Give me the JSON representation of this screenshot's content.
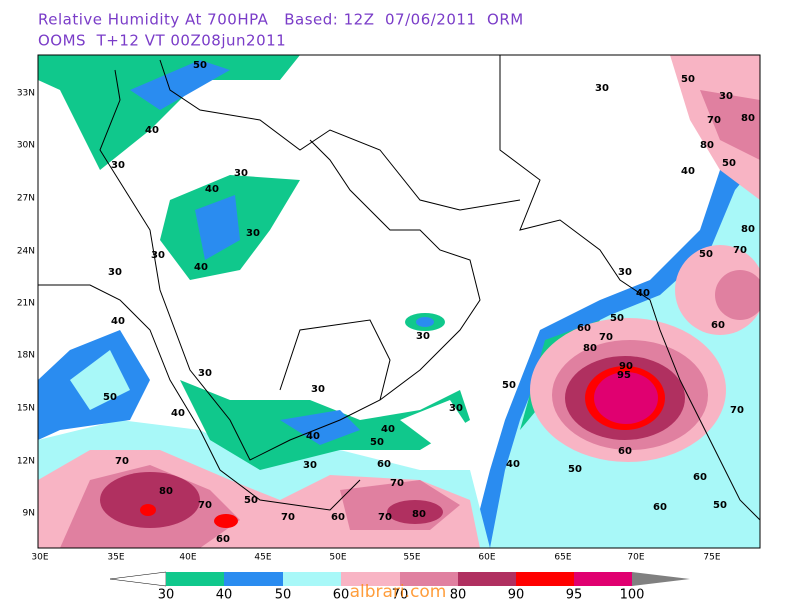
{
  "header": {
    "line1": "Relative Humidity At 700HPA   Based: 12Z  07/06/2011  ORM",
    "line2": "OOMS  T+12 VT 00Z08jun2011"
  },
  "map": {
    "lat_labels": [
      "33N",
      "30N",
      "27N",
      "24N",
      "21N",
      "18N",
      "15N",
      "12N",
      "9N"
    ],
    "lon_labels": [
      "30E",
      "35E",
      "40E",
      "45E",
      "50E",
      "55E",
      "60E",
      "65E",
      "70E",
      "75E"
    ],
    "contour_labels": [
      "50",
      "30",
      "50",
      "30",
      "70",
      "80",
      "40",
      "30",
      "80",
      "50",
      "30",
      "40",
      "40",
      "30",
      "30",
      "40",
      "80",
      "30",
      "50",
      "70",
      "30",
      "40",
      "50",
      "40",
      "30",
      "60",
      "70",
      "60",
      "80",
      "90",
      "95",
      "30",
      "50",
      "30",
      "50",
      "40",
      "30",
      "70",
      "40",
      "40",
      "50",
      "60",
      "70",
      "60",
      "30",
      "40",
      "50",
      "60",
      "70",
      "80",
      "50",
      "70",
      "60",
      "50",
      "70",
      "60",
      "70",
      "80",
      "60"
    ]
  },
  "colorbar": {
    "labels": [
      "30",
      "40",
      "50",
      "60",
      "70",
      "80",
      "90",
      "95",
      "100"
    ]
  },
  "watermark": "albrari.com"
}
